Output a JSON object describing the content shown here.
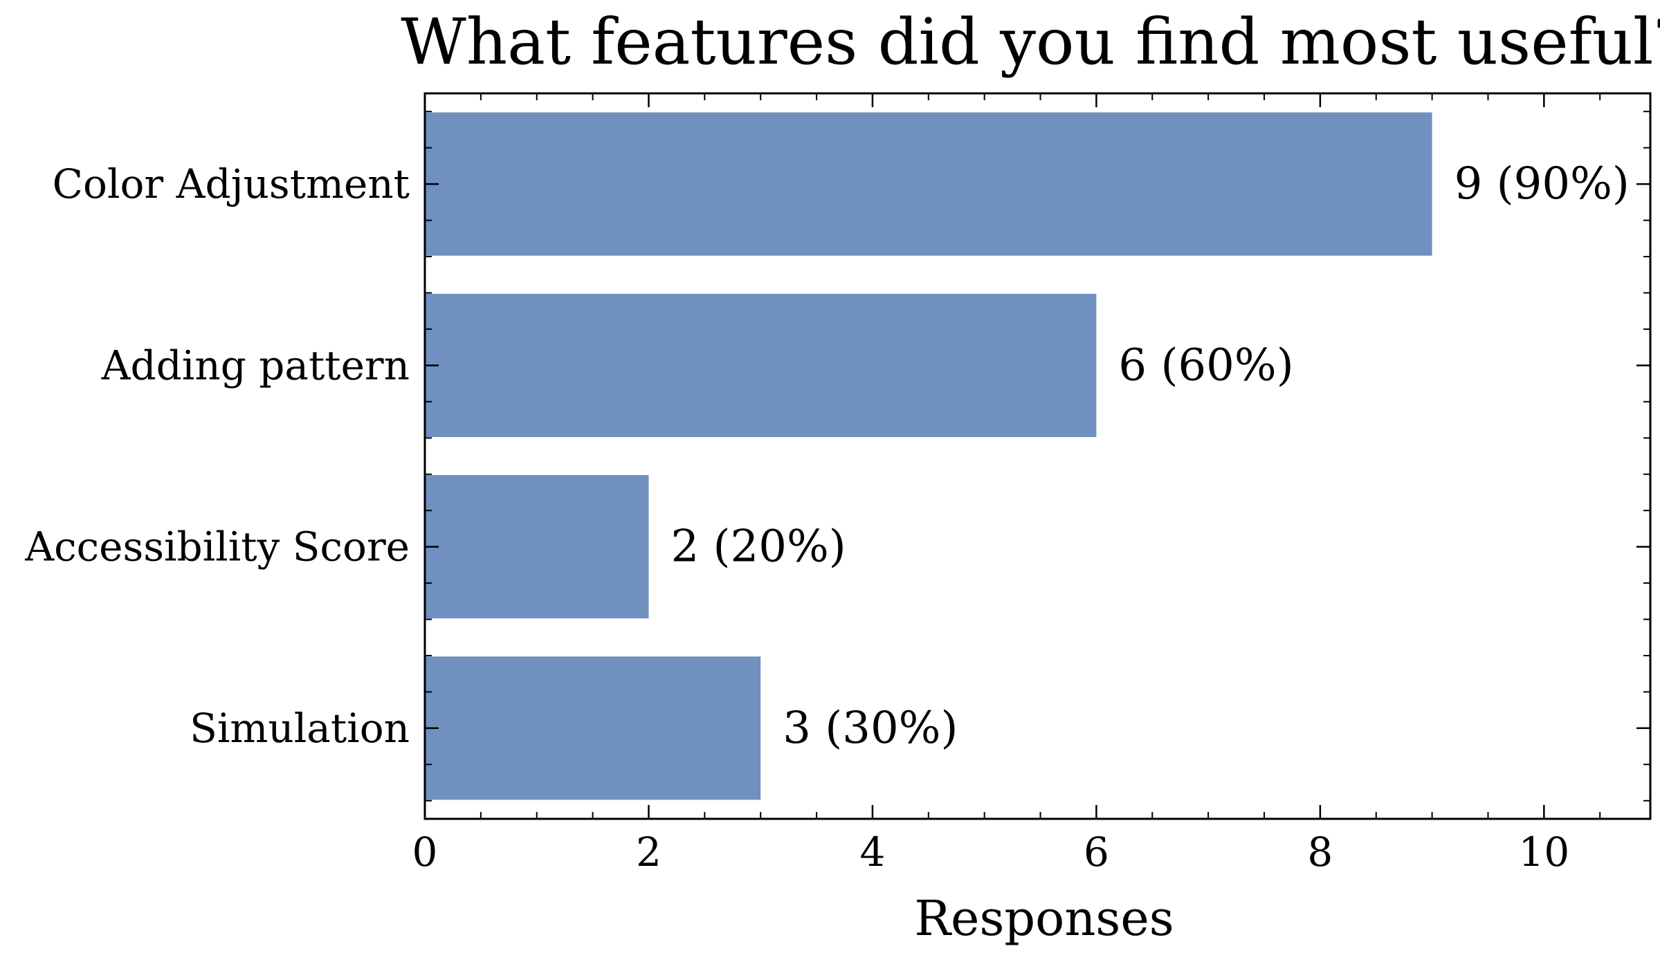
{
  "chart_data": {
    "type": "bar",
    "orientation": "horizontal",
    "title": "What features did you find most useful?",
    "xlabel": "Responses",
    "ylabel": "",
    "categories": [
      "Color Adjustment",
      "Adding pattern",
      "Accessibility Score",
      "Simulation"
    ],
    "values": [
      9,
      6,
      2,
      3
    ],
    "data_labels": [
      "9 (90%)",
      "6 (60%)",
      "2 (20%)",
      "3 (30%)"
    ],
    "xlim": [
      0,
      10.95
    ],
    "xticks": [
      0,
      2,
      4,
      6,
      8,
      10
    ],
    "xtick_labels": [
      "0",
      "2",
      "4",
      "6",
      "8",
      "10"
    ],
    "grid": false,
    "legend": "none",
    "bar_color": "#7090c0"
  }
}
